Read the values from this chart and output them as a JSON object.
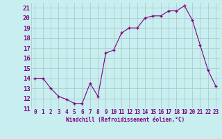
{
  "x": [
    0,
    1,
    2,
    3,
    4,
    5,
    6,
    7,
    8,
    9,
    10,
    11,
    12,
    13,
    14,
    15,
    16,
    17,
    18,
    19,
    20,
    21,
    22,
    23
  ],
  "y": [
    14.0,
    14.0,
    13.0,
    12.2,
    11.9,
    11.5,
    11.5,
    13.5,
    12.2,
    16.5,
    16.8,
    18.5,
    19.0,
    19.0,
    20.0,
    20.2,
    20.2,
    20.7,
    20.7,
    21.2,
    19.8,
    17.3,
    14.8,
    13.2
  ],
  "line_color": "#800080",
  "marker_color": "#800080",
  "bg_color": "#c8eef0",
  "grid_color": "#aacccc",
  "xlabel": "Windchill (Refroidissement éolien,°C)",
  "ylim": [
    11,
    21.5
  ],
  "xlim": [
    -0.5,
    23.5
  ],
  "yticks": [
    11,
    12,
    13,
    14,
    15,
    16,
    17,
    18,
    19,
    20,
    21
  ],
  "xticks": [
    0,
    1,
    2,
    3,
    4,
    5,
    6,
    7,
    8,
    9,
    10,
    11,
    12,
    13,
    14,
    15,
    16,
    17,
    18,
    19,
    20,
    21,
    22,
    23
  ],
  "tick_color": "#800080",
  "label_color": "#800080"
}
